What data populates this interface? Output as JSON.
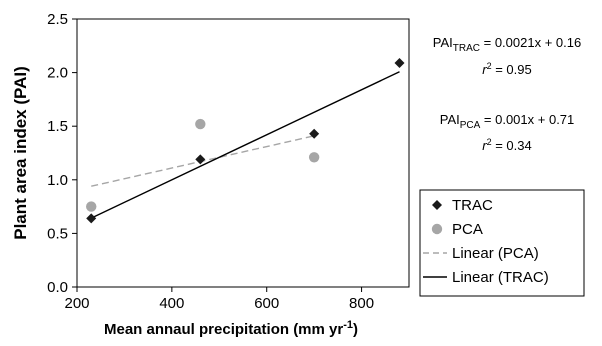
{
  "chart_data": {
    "type": "scatter",
    "xlabel": "Mean annaul precipitation (mm yr",
    "xlabel_sup": "-1",
    "xlabel_end": ")",
    "ylabel": "Plant area index (PAI)",
    "xlim": [
      200,
      900
    ],
    "ylim": [
      0.0,
      2.5
    ],
    "x_ticks": [
      "200",
      "400",
      "600",
      "800"
    ],
    "y_ticks": [
      "0.0",
      "0.5",
      "1.0",
      "1.5",
      "2.0",
      "2.5"
    ],
    "series": [
      {
        "name": "TRAC",
        "marker": "diamond",
        "color": "#1a1a1a",
        "points": [
          {
            "x": 230,
            "y": 0.64
          },
          {
            "x": 460,
            "y": 1.19
          },
          {
            "x": 700,
            "y": 1.43
          },
          {
            "x": 880,
            "y": 2.09
          }
        ]
      },
      {
        "name": "PCA",
        "marker": "circle",
        "color": "#a6a6a6",
        "points": [
          {
            "x": 230,
            "y": 0.75
          },
          {
            "x": 460,
            "y": 1.52
          },
          {
            "x": 700,
            "y": 1.21
          }
        ]
      }
    ],
    "trendlines": [
      {
        "name": "Linear (PCA)",
        "style": "dashed",
        "color": "#a6a6a6",
        "slope": 0.001,
        "intercept": 0.71,
        "x_range": [
          230,
          700
        ]
      },
      {
        "name": "Linear (TRAC)",
        "style": "solid",
        "color": "#000000",
        "slope": 0.0021,
        "intercept": 0.16,
        "x_range": [
          230,
          880
        ]
      }
    ],
    "annotations": [
      {
        "id": "trac",
        "pai_prefix": "PAI",
        "pai_sub": "TRAC",
        "equation": " = 0.0021x + 0.16",
        "r_label": "r",
        "r_sup": "2",
        "r_value": " = 0.95"
      },
      {
        "id": "pca",
        "pai_prefix": "PAI",
        "pai_sub": "PCA",
        "equation": " = 0.001x + 0.71",
        "r_label": "r",
        "r_sup": "2",
        "r_value": " = 0.34"
      }
    ],
    "legend": {
      "placement": "right",
      "entries": [
        {
          "label": "TRAC",
          "kind": "diamond",
          "color": "#1a1a1a"
        },
        {
          "label": "PCA",
          "kind": "circle",
          "color": "#a6a6a6"
        },
        {
          "label": "Linear (PCA)",
          "kind": "dashed",
          "color": "#a6a6a6"
        },
        {
          "label": "Linear (TRAC)",
          "kind": "solid",
          "color": "#000000"
        }
      ]
    },
    "grid": false
  }
}
